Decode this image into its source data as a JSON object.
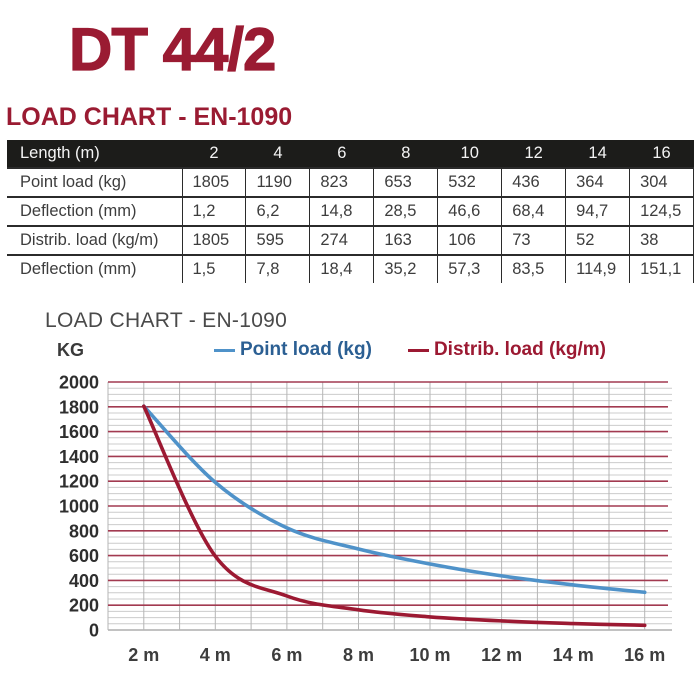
{
  "page_title": "DT 44/2",
  "table_section": {
    "heading": "LOAD CHART - EN-1090",
    "table": {
      "header_label": "Length (m)",
      "header_values": [
        "2",
        "4",
        "6",
        "8",
        "10",
        "12",
        "14",
        "16"
      ],
      "rows": [
        {
          "label": "Point load (kg)",
          "values": [
            "1805",
            "1190",
            "823",
            "653",
            "532",
            "436",
            "364",
            "304"
          ]
        },
        {
          "label": "Deflection (mm)",
          "values": [
            "1,2",
            "6,2",
            "14,8",
            "28,5",
            "46,6",
            "68,4",
            "94,7",
            "124,5"
          ]
        },
        {
          "label": "Distrib. load (kg/m)",
          "values": [
            "1805",
            "595",
            "274",
            "163",
            "106",
            "73",
            "52",
            "38"
          ]
        },
        {
          "label": "Deflection (mm)",
          "values": [
            "1,5",
            "7,8",
            "18,4",
            "35,2",
            "57,3",
            "83,5",
            "114,9",
            "151,1"
          ]
        }
      ]
    }
  },
  "chart_section": {
    "title": "LOAD CHART - EN-1090",
    "y_axis_unit": "KG",
    "legend": [
      {
        "label": "Point load (kg)",
        "line_color": "#4f92c9",
        "text_color": "#2b5f93"
      },
      {
        "label": "Distrib. load (kg/m)",
        "line_color": "#9c1932",
        "text_color": "#9c1932"
      }
    ]
  },
  "chart_data": {
    "type": "line",
    "x": [
      2,
      4,
      6,
      8,
      10,
      12,
      14,
      16
    ],
    "x_tick_labels": [
      "2 m",
      "4 m",
      "6 m",
      "8 m",
      "10 m",
      "12 m",
      "14 m",
      "16 m"
    ],
    "xlim": [
      1,
      16.65
    ],
    "ylim": [
      0,
      2000
    ],
    "y_ticks": [
      0,
      200,
      400,
      600,
      800,
      1000,
      1200,
      1400,
      1600,
      1800,
      2000
    ],
    "y_minor_step": 50,
    "x_grid_step": 1,
    "grid": true,
    "legend_position": "top",
    "series": [
      {
        "name": "Point load (kg)",
        "color": "#4f92c9",
        "values": [
          1805,
          1190,
          823,
          653,
          532,
          436,
          364,
          304
        ]
      },
      {
        "name": "Distrib. load (kg/m)",
        "color": "#9c1932",
        "values": [
          1805,
          595,
          274,
          163,
          106,
          73,
          52,
          38
        ]
      }
    ],
    "major_grid_color": "#a23a50",
    "minor_grid_color": "#cccccc",
    "vertical_grid_color": "#b5b5b5",
    "zero_line_color": "#9e9e9e"
  },
  "colors": {
    "brand_maroon": "#9a1b32",
    "table_header_bg": "#1c1c1a",
    "table_header_text": "#f4f4f4",
    "table_text": "#3d3d3d",
    "chart_title_gray": "#4a4a4a"
  }
}
